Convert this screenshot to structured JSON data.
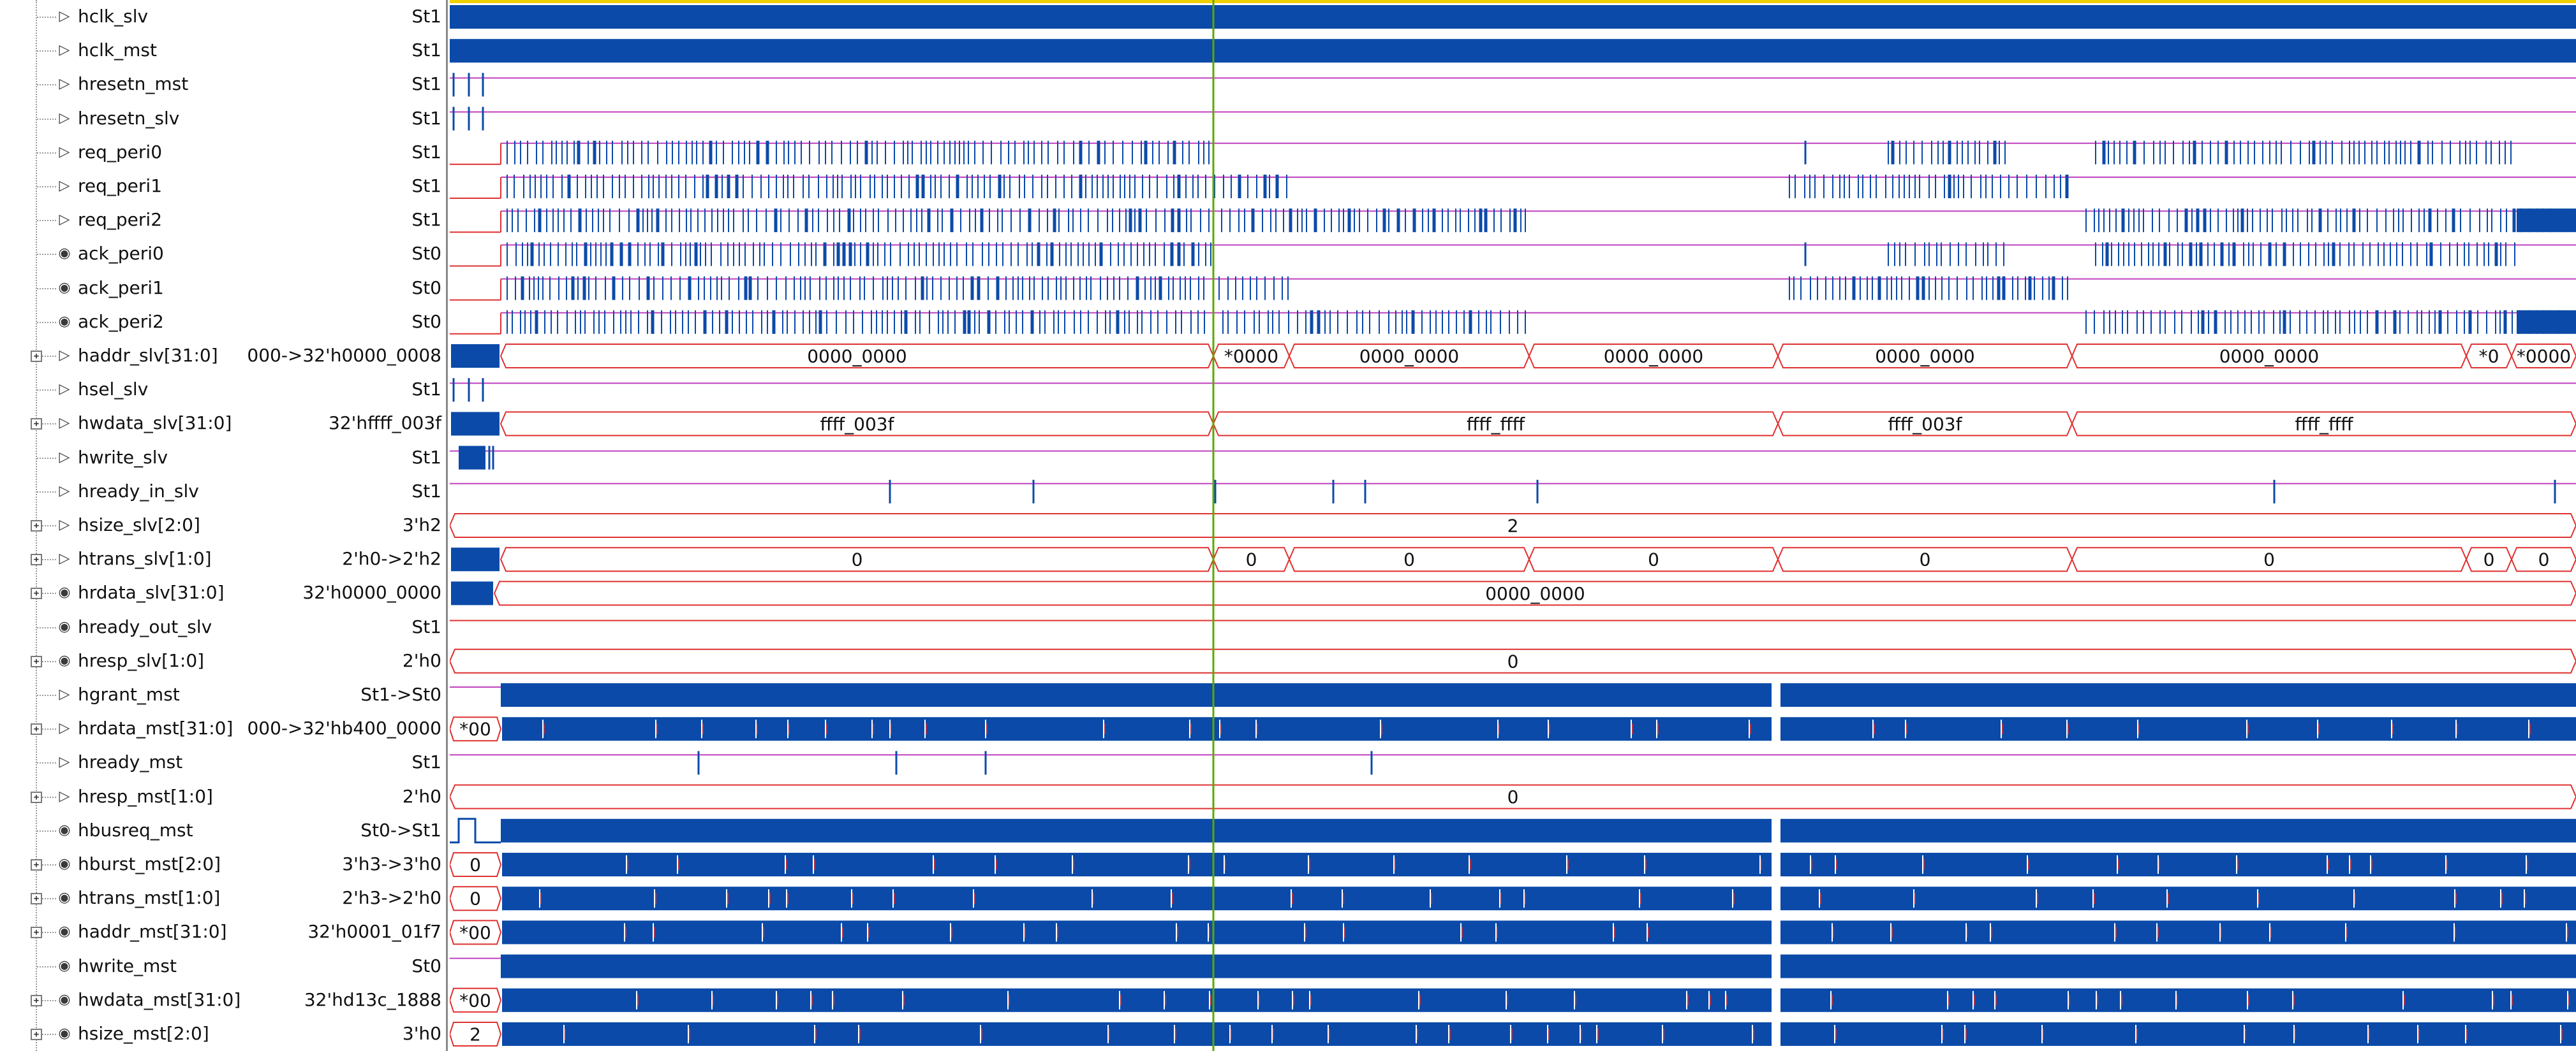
{
  "app": {
    "window": "waveform-viewer"
  },
  "colors": {
    "wave": "#0b4aa8",
    "bus_outline": "#e03030",
    "idle_line": "#c040c0",
    "cursor": "#5aa800",
    "top_bar": "#f0d000"
  },
  "signals": [
    {
      "name": "hclk_slv",
      "value": "St1",
      "dir": "in",
      "kind": "clock"
    },
    {
      "name": "hclk_mst",
      "value": "St1",
      "dir": "in",
      "kind": "clock"
    },
    {
      "name": "hresetn_mst",
      "value": "St1",
      "dir": "in",
      "kind": "reset"
    },
    {
      "name": "hresetn_slv",
      "value": "St1",
      "dir": "in",
      "kind": "reset"
    },
    {
      "name": "req_peri0",
      "value": "St1",
      "dir": "in",
      "kind": "toggle",
      "density": "req0"
    },
    {
      "name": "req_peri1",
      "value": "St1",
      "dir": "in",
      "kind": "toggle",
      "density": "req1"
    },
    {
      "name": "req_peri2",
      "value": "St1",
      "dir": "in",
      "kind": "toggle",
      "density": "req2"
    },
    {
      "name": "ack_peri0",
      "value": "St0",
      "dir": "out",
      "kind": "toggle",
      "density": "req0"
    },
    {
      "name": "ack_peri1",
      "value": "St0",
      "dir": "out",
      "kind": "toggle",
      "density": "req1"
    },
    {
      "name": "ack_peri2",
      "value": "St0",
      "dir": "out",
      "kind": "toggle",
      "density": "req2"
    },
    {
      "name": "haddr_slv[31:0]",
      "value": "000->32'h0000_0008",
      "dir": "in",
      "bus": true,
      "kind": "bus",
      "segments": [
        {
          "label": ""
        },
        {
          "label": "0000_0000"
        },
        {
          "label": "*0000"
        },
        {
          "label": "0000_0000"
        },
        {
          "label": "0000_0000"
        },
        {
          "label": "0000_0000"
        },
        {
          "label": "0000_0000"
        },
        {
          "label": "*0"
        },
        {
          "label": "*0000"
        }
      ]
    },
    {
      "name": "hsel_slv",
      "value": "St1",
      "dir": "in",
      "kind": "reset"
    },
    {
      "name": "hwdata_slv[31:0]",
      "value": "32'hffff_003f",
      "dir": "in",
      "bus": true,
      "kind": "bus",
      "segments": [
        {
          "label": ""
        },
        {
          "label": "ffff_003f"
        },
        {
          "label": "ffff_ffff"
        },
        {
          "label": "ffff_003f"
        },
        {
          "label": "ffff_ffff"
        }
      ]
    },
    {
      "name": "hwrite_slv",
      "value": "St1",
      "dir": "in",
      "kind": "burst"
    },
    {
      "name": "hready_in_slv",
      "value": "St1",
      "dir": "in",
      "kind": "sparse"
    },
    {
      "name": "hsize_slv[2:0]",
      "value": "3'h2",
      "dir": "in",
      "bus": true,
      "kind": "bus",
      "segments": [
        {
          "label": "2"
        }
      ]
    },
    {
      "name": "htrans_slv[1:0]",
      "value": "2'h0->2'h2",
      "dir": "in",
      "bus": true,
      "kind": "bus",
      "segments": [
        {
          "label": ""
        },
        {
          "label": "0"
        },
        {
          "label": "0"
        },
        {
          "label": "0"
        },
        {
          "label": "0"
        },
        {
          "label": "0"
        },
        {
          "label": "0"
        },
        {
          "label": "0"
        },
        {
          "label": "0"
        }
      ]
    },
    {
      "name": "hrdata_slv[31:0]",
      "value": "32'h0000_0000",
      "dir": "out",
      "bus": true,
      "kind": "bus",
      "segments": [
        {
          "label": ""
        },
        {
          "label": "0000_0000"
        }
      ]
    },
    {
      "name": "hready_out_slv",
      "value": "St1",
      "dir": "out",
      "kind": "flat"
    },
    {
      "name": "hresp_slv[1:0]",
      "value": "2'h0",
      "dir": "out",
      "bus": true,
      "kind": "bus",
      "segments": [
        {
          "label": "0"
        }
      ]
    },
    {
      "name": "hgrant_mst",
      "value": "St1->St0",
      "dir": "in",
      "kind": "block"
    },
    {
      "name": "hrdata_mst[31:0]",
      "value": "000->32'hb400_0000",
      "dir": "in",
      "bus": true,
      "kind": "busblock",
      "first_label": "*00"
    },
    {
      "name": "hready_mst",
      "value": "St1",
      "dir": "in",
      "kind": "sparse2"
    },
    {
      "name": "hresp_mst[1:0]",
      "value": "2'h0",
      "dir": "in",
      "bus": true,
      "kind": "bus",
      "segments": [
        {
          "label": "0"
        }
      ]
    },
    {
      "name": "hbusreq_mst",
      "value": "St0->St1",
      "dir": "out",
      "kind": "block"
    },
    {
      "name": "hburst_mst[2:0]",
      "value": "3'h3->3'h0",
      "dir": "out",
      "bus": true,
      "kind": "busblock",
      "first_label": "0"
    },
    {
      "name": "htrans_mst[1:0]",
      "value": "2'h3->2'h0",
      "dir": "out",
      "bus": true,
      "kind": "busblock",
      "first_label": "0"
    },
    {
      "name": "haddr_mst[31:0]",
      "value": "32'h0001_01f7",
      "dir": "out",
      "bus": true,
      "kind": "busblock",
      "first_label": "*00"
    },
    {
      "name": "hwrite_mst",
      "value": "St0",
      "dir": "out",
      "kind": "block"
    },
    {
      "name": "hwdata_mst[31:0]",
      "value": "32'hd13c_1888",
      "dir": "out",
      "bus": true,
      "kind": "busblock",
      "first_label": "*00"
    },
    {
      "name": "hsize_mst[2:0]",
      "value": "3'h0",
      "dir": "out",
      "bus": true,
      "kind": "busblock",
      "first_label": "2"
    }
  ]
}
